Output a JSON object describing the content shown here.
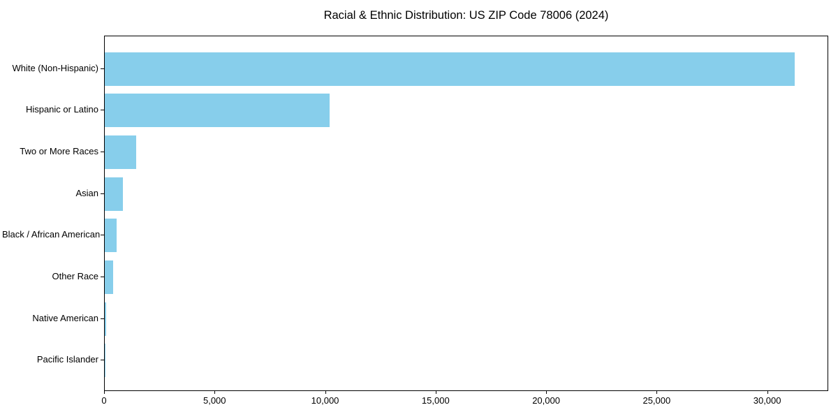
{
  "chart_data": {
    "type": "bar",
    "orientation": "horizontal",
    "title": "Racial & Ethnic Distribution: US ZIP Code 78006 (2024)",
    "xlabel": "",
    "ylabel": "",
    "categories": [
      "White (Non-Hispanic)",
      "Hispanic or Latino",
      "Two or More Races",
      "Asian",
      "Black / African American",
      "Other Race",
      "Native American",
      "Pacific Islander"
    ],
    "values": [
      31200,
      10170,
      1430,
      820,
      540,
      370,
      50,
      10
    ],
    "xlim": [
      0,
      32760
    ],
    "x_ticks": [
      0,
      5000,
      10000,
      15000,
      20000,
      25000,
      30000
    ],
    "x_tick_labels": [
      "0",
      "5,000",
      "10,000",
      "15,000",
      "20,000",
      "25,000",
      "30,000"
    ],
    "bar_color": "#87CEEB",
    "axis_color": "#000000",
    "background_color": "#ffffff",
    "grid": false,
    "legend": null
  }
}
